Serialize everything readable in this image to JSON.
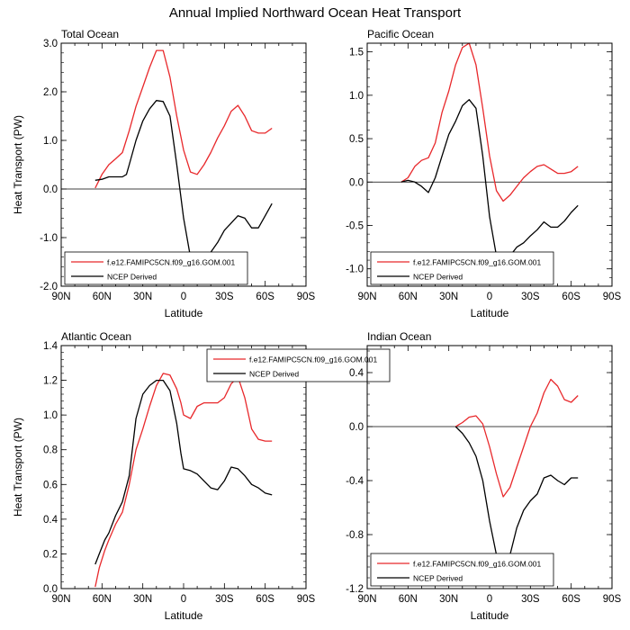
{
  "title": "Annual Implied Northward Ocean Heat Transport",
  "colors": {
    "model": "#e8282b",
    "ncep": "#000000"
  },
  "chart_data": [
    {
      "type": "line",
      "title": "Total Ocean",
      "xlabel": "Latitude",
      "ylabel": "Heat Transport (PW)",
      "xlim": [
        90,
        -90
      ],
      "ylim": [
        -2.0,
        3.0
      ],
      "x_ticks": [
        90,
        60,
        30,
        0,
        -30,
        -60,
        -90
      ],
      "x_tick_labels": [
        "90N",
        "60N",
        "30N",
        "0",
        "30S",
        "60S",
        "90S"
      ],
      "y_ticks": [
        -2,
        -1,
        0,
        1,
        2,
        3
      ],
      "y_tick_labels": [
        "-2.0",
        "-1.0",
        "0.0",
        "1.0",
        "2.0",
        "3.0"
      ],
      "legend_position": "bottom-left",
      "series": [
        {
          "name": "f.e12.FAMIPC5CN.f09_g16.GOM.001",
          "color": "#e8282b",
          "x": [
            65,
            60,
            55,
            50,
            45,
            40,
            35,
            30,
            25,
            20,
            15,
            10,
            5,
            0,
            -5,
            -10,
            -15,
            -20,
            -25,
            -30,
            -35,
            -40,
            -45,
            -50,
            -55,
            -60,
            -65
          ],
          "y": [
            0.02,
            0.3,
            0.5,
            0.62,
            0.75,
            1.2,
            1.7,
            2.1,
            2.5,
            2.85,
            2.85,
            2.3,
            1.5,
            0.8,
            0.35,
            0.3,
            0.5,
            0.75,
            1.05,
            1.3,
            1.6,
            1.72,
            1.5,
            1.2,
            1.15,
            1.15,
            1.25
          ]
        },
        {
          "name": "NCEP Derived",
          "color": "#000000",
          "x": [
            65,
            60,
            55,
            50,
            45,
            42,
            40,
            35,
            30,
            25,
            20,
            15,
            10,
            5,
            0,
            -5,
            -10,
            -15,
            -20,
            -25,
            -30,
            -35,
            -40,
            -45,
            -50,
            -55,
            -60,
            -65
          ],
          "y": [
            0.18,
            0.2,
            0.25,
            0.25,
            0.25,
            0.3,
            0.5,
            1.0,
            1.4,
            1.65,
            1.82,
            1.8,
            1.5,
            0.5,
            -0.6,
            -1.4,
            -1.7,
            -1.6,
            -1.3,
            -1.1,
            -0.85,
            -0.7,
            -0.55,
            -0.6,
            -0.8,
            -0.8,
            -0.55,
            -0.3
          ]
        }
      ]
    },
    {
      "type": "line",
      "title": "Pacific Ocean",
      "xlabel": "Latitude",
      "ylabel": "",
      "xlim": [
        90,
        -90
      ],
      "ylim": [
        -1.2,
        1.6
      ],
      "x_ticks": [
        90,
        60,
        30,
        0,
        -30,
        -60,
        -90
      ],
      "x_tick_labels": [
        "90N",
        "60N",
        "30N",
        "0",
        "30S",
        "60S",
        "90S"
      ],
      "y_ticks": [
        -1,
        -0.5,
        0,
        0.5,
        1,
        1.5
      ],
      "y_tick_labels": [
        "-1.0",
        "-0.5",
        "0.0",
        "0.5",
        "1.0",
        "1.5"
      ],
      "legend_position": "bottom-left",
      "series": [
        {
          "name": "f.e12.FAMIPC5CN.f09_g16.GOM.001",
          "color": "#e8282b",
          "x": [
            65,
            60,
            55,
            50,
            45,
            40,
            35,
            30,
            25,
            20,
            15,
            10,
            5,
            0,
            -5,
            -10,
            -15,
            -20,
            -25,
            -30,
            -35,
            -40,
            -45,
            -50,
            -55,
            -60,
            -65
          ],
          "y": [
            0.0,
            0.05,
            0.18,
            0.25,
            0.28,
            0.45,
            0.8,
            1.05,
            1.35,
            1.55,
            1.6,
            1.35,
            0.85,
            0.3,
            -0.1,
            -0.22,
            -0.15,
            -0.05,
            0.05,
            0.12,
            0.18,
            0.2,
            0.15,
            0.1,
            0.1,
            0.12,
            0.18
          ]
        },
        {
          "name": "NCEP Derived",
          "color": "#000000",
          "x": [
            65,
            60,
            55,
            50,
            45,
            40,
            35,
            30,
            25,
            20,
            15,
            10,
            5,
            0,
            -5,
            -10,
            -15,
            -20,
            -25,
            -30,
            -35,
            -40,
            -45,
            -50,
            -55,
            -60,
            -65
          ],
          "y": [
            0.0,
            0.02,
            0.0,
            -0.05,
            -0.12,
            0.05,
            0.3,
            0.55,
            0.7,
            0.88,
            0.95,
            0.85,
            0.3,
            -0.4,
            -0.85,
            -0.92,
            -0.85,
            -0.75,
            -0.7,
            -0.62,
            -0.55,
            -0.46,
            -0.52,
            -0.52,
            -0.45,
            -0.35,
            -0.27
          ]
        }
      ]
    },
    {
      "type": "line",
      "title": "Atlantic Ocean",
      "xlabel": "Latitude",
      "ylabel": "Heat Transport (PW)",
      "xlim": [
        90,
        -90
      ],
      "ylim": [
        0.0,
        1.4
      ],
      "x_ticks": [
        90,
        60,
        30,
        0,
        -30,
        -60,
        -90
      ],
      "x_tick_labels": [
        "90N",
        "60N",
        "30N",
        "0",
        "30S",
        "60S",
        "90S"
      ],
      "y_ticks": [
        0,
        0.2,
        0.4,
        0.6,
        0.8,
        1.0,
        1.2,
        1.4
      ],
      "y_tick_labels": [
        "0.0",
        "0.2",
        "0.4",
        "0.6",
        "0.8",
        "1.0",
        "1.2",
        "1.4"
      ],
      "legend_position": "top-right",
      "series": [
        {
          "name": "f.e12.FAMIPC5CN.f09_g16.GOM.001",
          "color": "#e8282b",
          "x": [
            65,
            62,
            58,
            55,
            50,
            45,
            40,
            35,
            30,
            25,
            20,
            15,
            10,
            5,
            2,
            0,
            -5,
            -10,
            -15,
            -20,
            -25,
            -30,
            -35,
            -40,
            -45,
            -50,
            -55,
            -60,
            -65
          ],
          "y": [
            0.01,
            0.12,
            0.22,
            0.28,
            0.37,
            0.44,
            0.6,
            0.8,
            0.92,
            1.05,
            1.17,
            1.24,
            1.23,
            1.15,
            1.07,
            1.0,
            0.98,
            1.05,
            1.07,
            1.07,
            1.07,
            1.1,
            1.18,
            1.22,
            1.1,
            0.92,
            0.86,
            0.85,
            0.85
          ]
        },
        {
          "name": "NCEP Derived",
          "color": "#000000",
          "x": [
            65,
            62,
            58,
            55,
            50,
            45,
            40,
            35,
            30,
            25,
            20,
            15,
            10,
            5,
            2,
            0,
            -5,
            -10,
            -15,
            -20,
            -25,
            -30,
            -35,
            -40,
            -45,
            -50,
            -55,
            -60,
            -65
          ],
          "y": [
            0.14,
            0.2,
            0.28,
            0.32,
            0.42,
            0.5,
            0.65,
            0.98,
            1.12,
            1.17,
            1.2,
            1.2,
            1.14,
            0.95,
            0.78,
            0.69,
            0.68,
            0.66,
            0.62,
            0.58,
            0.57,
            0.62,
            0.7,
            0.69,
            0.65,
            0.6,
            0.58,
            0.55,
            0.54
          ]
        }
      ]
    },
    {
      "type": "line",
      "title": "Indian Ocean",
      "xlabel": "Latitude",
      "ylabel": "",
      "xlim": [
        90,
        -90
      ],
      "ylim": [
        -1.2,
        0.6
      ],
      "x_ticks": [
        90,
        60,
        30,
        0,
        -30,
        -60,
        -90
      ],
      "x_tick_labels": [
        "90N",
        "60N",
        "30N",
        "0",
        "30S",
        "60S",
        "90S"
      ],
      "y_ticks": [
        -1.2,
        -0.8,
        -0.4,
        0,
        0.4
      ],
      "y_tick_labels": [
        "-1.2",
        "-0.8",
        "-0.4",
        "0.0",
        "0.4"
      ],
      "legend_position": "bottom-left",
      "series": [
        {
          "name": "f.e12.FAMIPC5CN.f09_g16.GOM.001",
          "color": "#e8282b",
          "x": [
            25,
            20,
            15,
            10,
            5,
            0,
            -5,
            -10,
            -15,
            -20,
            -25,
            -30,
            -35,
            -40,
            -45,
            -50,
            -55,
            -60,
            -65
          ],
          "y": [
            0.0,
            0.03,
            0.07,
            0.08,
            0.02,
            -0.15,
            -0.35,
            -0.52,
            -0.45,
            -0.3,
            -0.15,
            0.0,
            0.1,
            0.25,
            0.35,
            0.3,
            0.2,
            0.18,
            0.23
          ]
        },
        {
          "name": "NCEP Derived",
          "color": "#000000",
          "x": [
            25,
            20,
            15,
            10,
            5,
            0,
            -5,
            -10,
            -15,
            -20,
            -25,
            -30,
            -35,
            -40,
            -45,
            -50,
            -55,
            -60,
            -65
          ],
          "y": [
            0.0,
            -0.05,
            -0.12,
            -0.22,
            -0.4,
            -0.7,
            -0.95,
            -1.05,
            -0.95,
            -0.75,
            -0.62,
            -0.55,
            -0.5,
            -0.38,
            -0.36,
            -0.4,
            -0.43,
            -0.38,
            -0.38
          ]
        }
      ]
    }
  ]
}
